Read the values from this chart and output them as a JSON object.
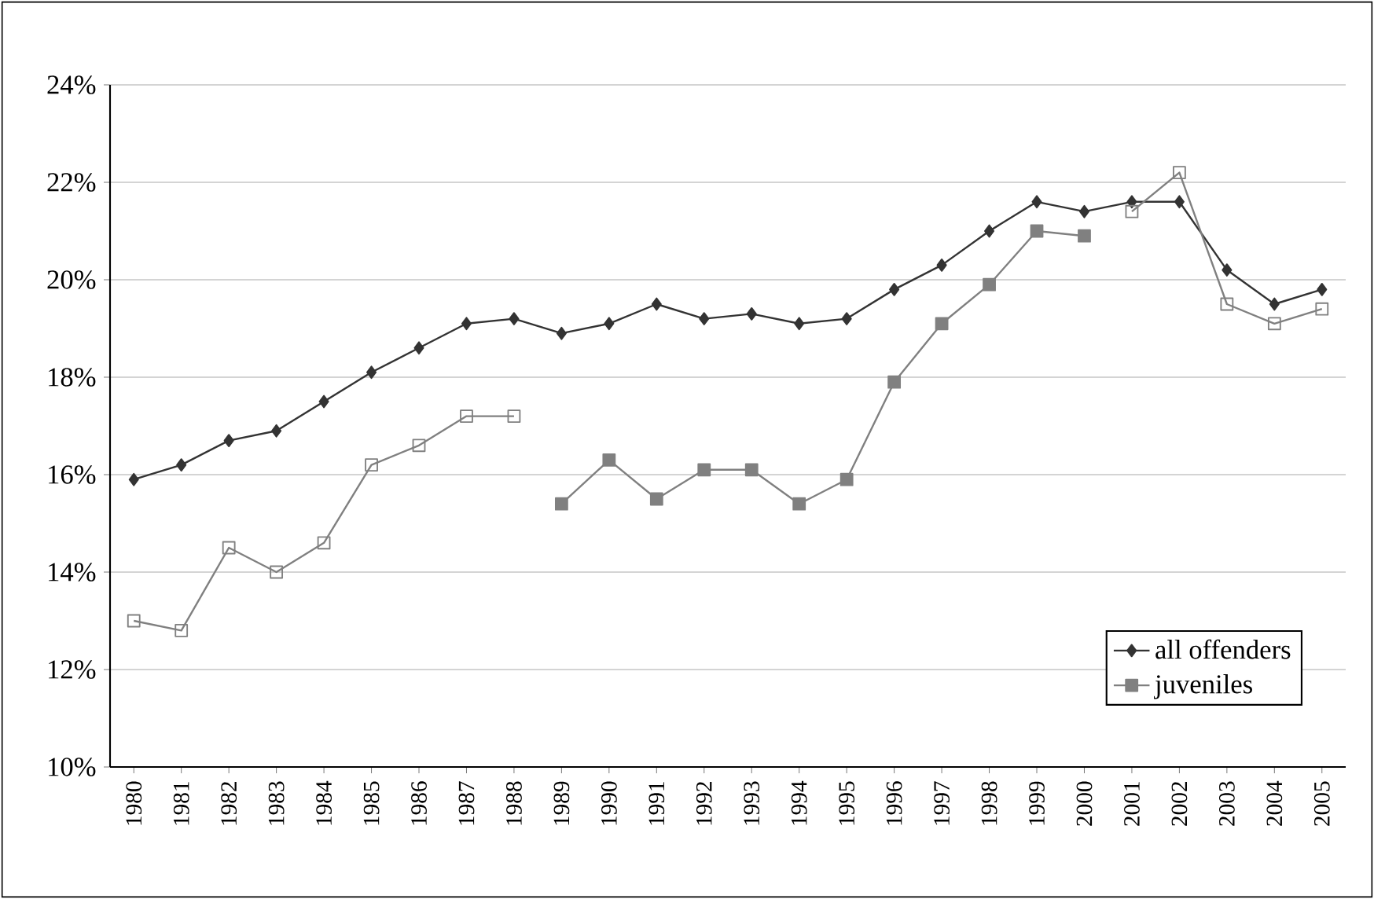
{
  "chart_data": {
    "type": "line",
    "categories": [
      "1980",
      "1981",
      "1982",
      "1983",
      "1984",
      "1985",
      "1986",
      "1987",
      "1988",
      "1989",
      "1990",
      "1991",
      "1992",
      "1993",
      "1994",
      "1995",
      "1996",
      "1997",
      "1998",
      "1999",
      "2000",
      "2001",
      "2002",
      "2003",
      "2004",
      "2005"
    ],
    "series": [
      {
        "name": "all offenders",
        "color": "#333333",
        "marker": "diamond",
        "values": [
          15.9,
          16.2,
          16.7,
          16.9,
          17.5,
          18.1,
          18.6,
          19.1,
          19.2,
          18.9,
          19.1,
          19.5,
          19.2,
          19.3,
          19.1,
          19.2,
          19.8,
          20.3,
          21.0,
          21.6,
          21.4,
          21.6,
          21.6,
          20.2,
          19.5,
          19.8
        ]
      },
      {
        "name": "juveniles",
        "color": "#808080",
        "marker": "square",
        "values": [
          null,
          null,
          null,
          null,
          null,
          null,
          null,
          null,
          null,
          15.4,
          16.3,
          15.5,
          16.1,
          16.1,
          15.4,
          15.9,
          17.9,
          19.1,
          19.9,
          21.0,
          20.9,
          null,
          null,
          null,
          null,
          null
        ]
      },
      {
        "color": "#808080",
        "marker": "square",
        "values": [
          13.0,
          12.8,
          14.5,
          14.0,
          14.6,
          16.2,
          16.6,
          17.2,
          17.2,
          null,
          null,
          null,
          null,
          null,
          null,
          null,
          null,
          null,
          null,
          null,
          null,
          21.4,
          22.2,
          19.5,
          19.1,
          19.4
        ]
      }
    ],
    "ylim": [
      10,
      24
    ],
    "yticks": [
      {
        "value": 10,
        "label": "10%"
      },
      {
        "value": 12,
        "label": "12%"
      },
      {
        "value": 14,
        "label": "14%"
      },
      {
        "value": 16,
        "label": "16%"
      },
      {
        "value": 18,
        "label": "18%"
      },
      {
        "value": 20,
        "label": "20%"
      },
      {
        "value": 22,
        "label": "22%"
      },
      {
        "value": 24,
        "label": "24%"
      }
    ],
    "grid": "y",
    "legend": "bottom right"
  }
}
